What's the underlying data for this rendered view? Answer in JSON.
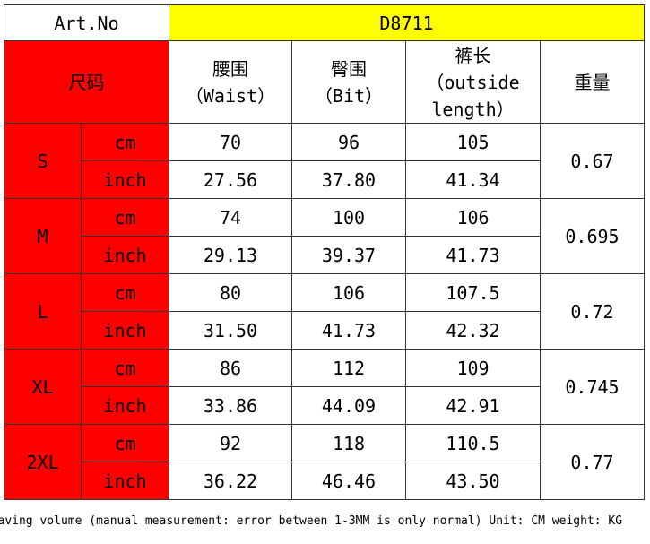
{
  "header": {
    "art_label": "Art.No",
    "art_value": "D8711"
  },
  "columns": {
    "size": "尺码",
    "waist": [
      "腰围",
      "（Waist）"
    ],
    "hip": [
      "臀围",
      "（Bit）"
    ],
    "length": [
      "裤长",
      "（outside",
      "length）"
    ],
    "weight": "重量"
  },
  "sizes": [
    {
      "name": "S",
      "cm": {
        "label": "cm",
        "waist": "70",
        "hip": "96",
        "length": "105"
      },
      "inch": {
        "label": "inch",
        "waist": "27.56",
        "hip": "37.80",
        "length": "41.34"
      },
      "weight": "0.67"
    },
    {
      "name": "M",
      "cm": {
        "label": "cm",
        "waist": "74",
        "hip": "100",
        "length": "106"
      },
      "inch": {
        "label": "inch",
        "waist": "29.13",
        "hip": "39.37",
        "length": "41.73"
      },
      "weight": "0.695"
    },
    {
      "name": "L",
      "cm": {
        "label": "cm",
        "waist": "80",
        "hip": "106",
        "length": "107.5"
      },
      "inch": {
        "label": "inch",
        "waist": "31.50",
        "hip": "41.73",
        "length": "42.32"
      },
      "weight": "0.72"
    },
    {
      "name": "XL",
      "cm": {
        "label": "cm",
        "waist": "86",
        "hip": "112",
        "length": "109"
      },
      "inch": {
        "label": "inch",
        "waist": "33.86",
        "hip": "44.09",
        "length": "42.91"
      },
      "weight": "0.745"
    },
    {
      "name": "2XL",
      "cm": {
        "label": "cm",
        "waist": "92",
        "hip": "118",
        "length": "110.5"
      },
      "inch": {
        "label": "inch",
        "waist": "36.22",
        "hip": "46.46",
        "length": "43.50"
      },
      "weight": "0.77"
    }
  ],
  "note": "aving volume (manual measurement: error between 1-3MM is only normal) Unit: CM weight: KG",
  "colors": {
    "size_fill": "#ff0000",
    "art_fill": "#ffff00"
  }
}
